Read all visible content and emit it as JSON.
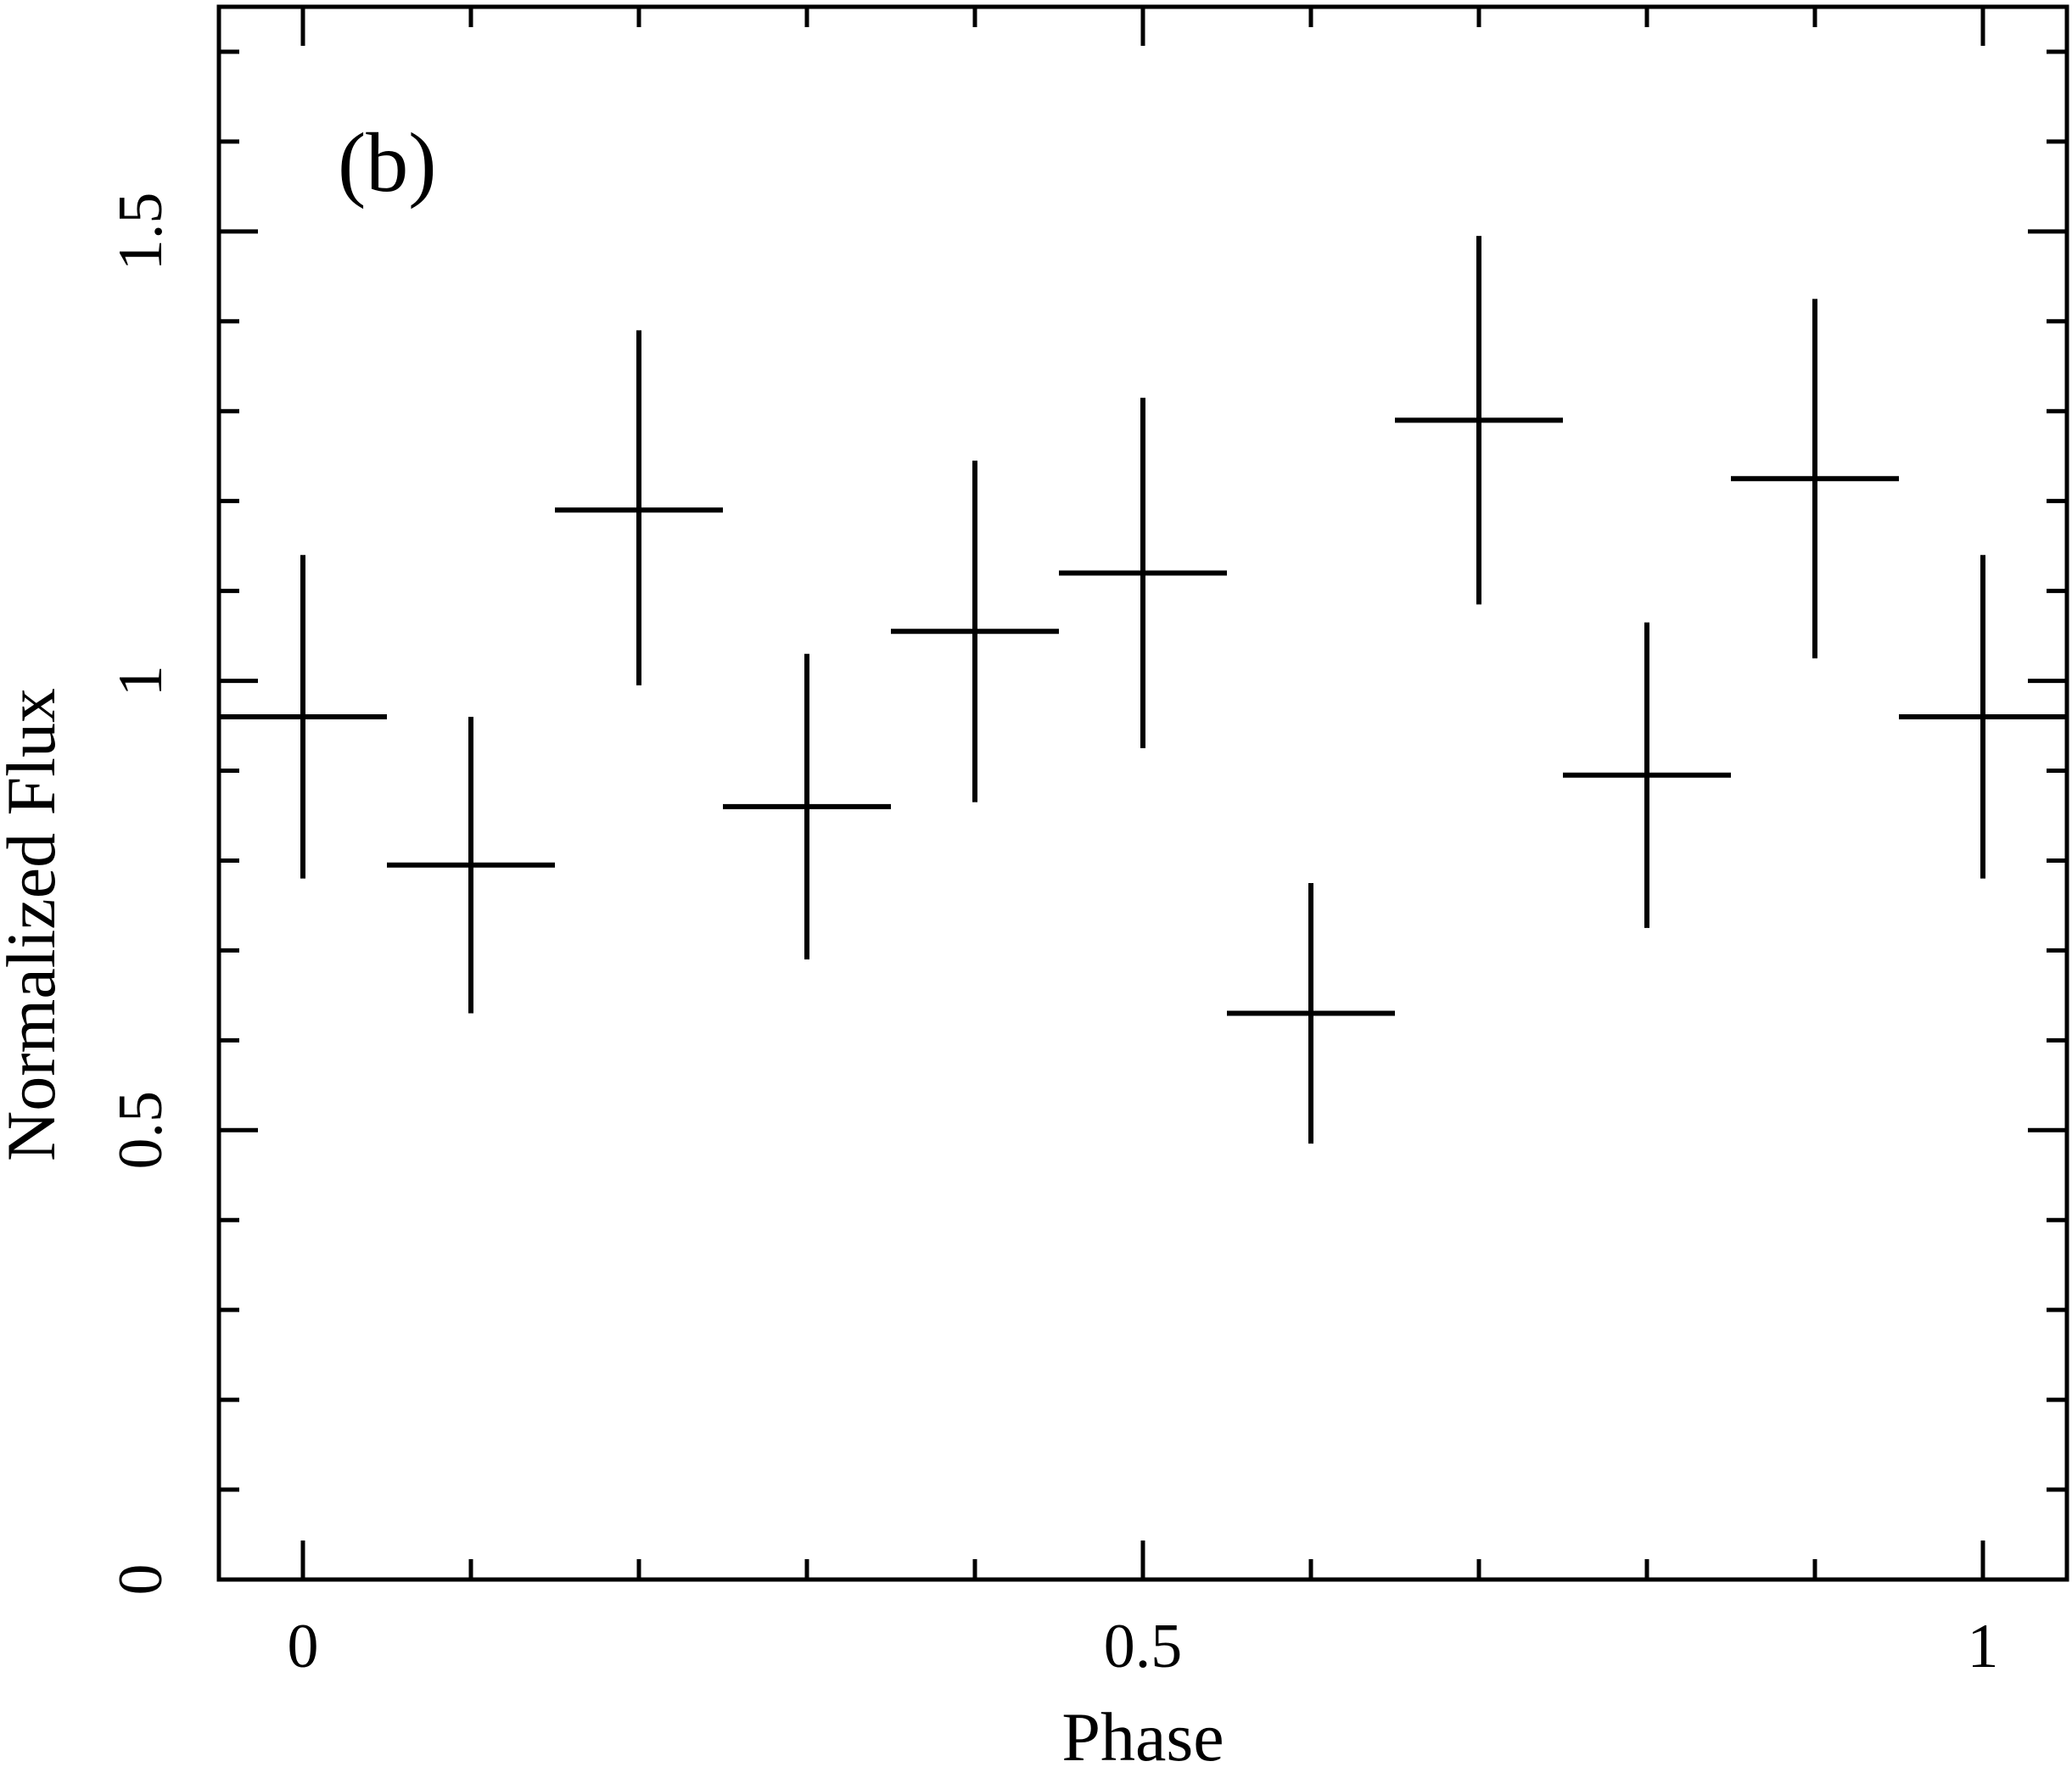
{
  "chart_data": {
    "type": "scatter",
    "annotation": "(b)",
    "xlabel": "Phase",
    "ylabel": "Normalized Flux",
    "xlim": [
      -0.05,
      1.05
    ],
    "ylim": [
      0,
      1.75
    ],
    "x_tick_labels": [
      "0",
      "0.5",
      "1"
    ],
    "x_tick_values": [
      0,
      0.5,
      1
    ],
    "y_tick_labels": [
      "0",
      "0.5",
      "1",
      "1.5"
    ],
    "y_tick_values": [
      0,
      0.5,
      1,
      1.5
    ],
    "grid": false,
    "series": [
      {
        "x": [
          0.0,
          0.1,
          0.2,
          0.3,
          0.4,
          0.5,
          0.6,
          0.7,
          0.8,
          0.9,
          1.0
        ],
        "x_err": 0.05,
        "y": [
          0.96,
          0.795,
          1.19,
          0.86,
          1.055,
          1.12,
          0.63,
          1.29,
          0.895,
          1.225,
          0.96
        ],
        "y_err_low": [
          0.18,
          0.165,
          0.195,
          0.17,
          0.19,
          0.195,
          0.145,
          0.205,
          0.17,
          0.2,
          0.18
        ],
        "y_err_high": [
          0.18,
          0.165,
          0.2,
          0.17,
          0.19,
          0.195,
          0.145,
          0.205,
          0.17,
          0.2,
          0.18
        ],
        "color": "#000000"
      }
    ]
  }
}
